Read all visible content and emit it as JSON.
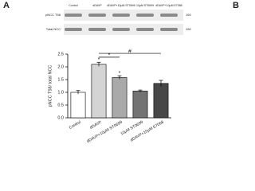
{
  "blot": {
    "panel": "A",
    "next_panel": "B",
    "lanes": [
      "Control",
      "dDAVP",
      "dDAVP+10μM ST0699",
      "10μM ST0699",
      "dDAVP+10μM E7068"
    ],
    "rows": [
      {
        "label": "pNCC T58",
        "marker": "150"
      },
      {
        "label": "Total NCC",
        "marker": "150"
      }
    ]
  },
  "chart_data": {
    "type": "bar",
    "y_label": "pNCC T58/ total NCC",
    "categories": [
      "Control",
      "dDAVP",
      "dDAVP+10μM ST0699",
      "10μM ST0699",
      "dDAVP+10μM E7068"
    ],
    "values": [
      1.0,
      2.1,
      1.58,
      1.05,
      1.35
    ],
    "errors": [
      0.07,
      0.08,
      0.07,
      0.04,
      0.12
    ],
    "colors": [
      "#ffffff",
      "#d4d4d4",
      "#a9a9a9",
      "#737373",
      "#474747"
    ],
    "ylim": [
      0,
      2.5
    ],
    "yticks": [
      {
        "value": 0,
        "label": "0.0"
      },
      0.5,
      {
        "value": 1,
        "label": "1.0"
      },
      1.5,
      {
        "value": 2,
        "label": "2.0"
      },
      2.5
    ],
    "annotations": [
      "*",
      "*",
      "*",
      "#"
    ]
  }
}
